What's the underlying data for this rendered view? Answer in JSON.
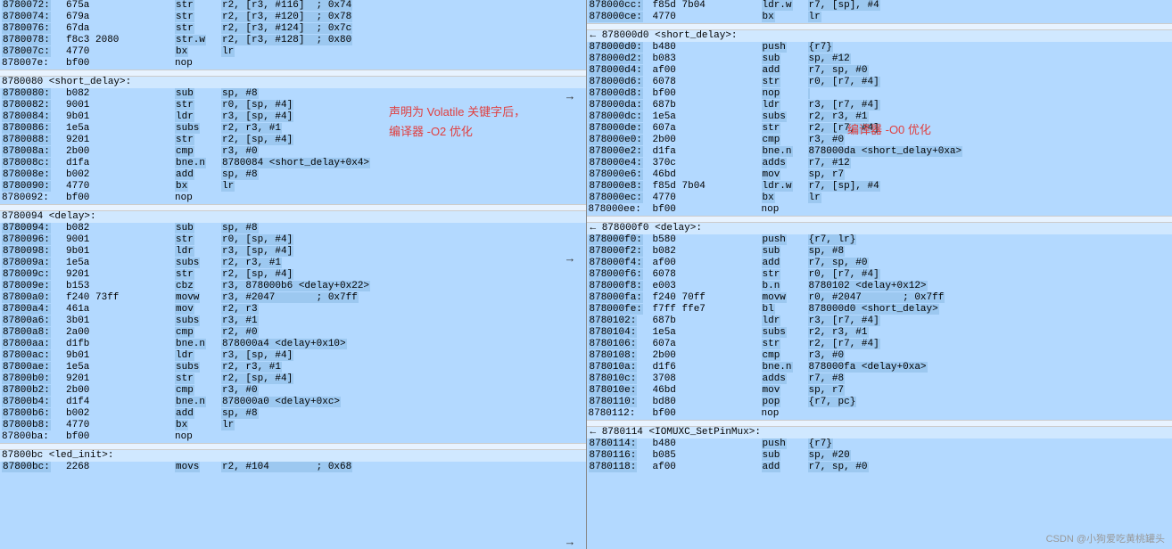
{
  "colors": {
    "background": "#b3d9ff",
    "highlight": "#9cc8f0",
    "text": "#000000",
    "annotation": "#e04040",
    "watermark": "#999999",
    "divider": "#999999"
  },
  "annotations": {
    "left_line1": "声明为 Volatile 关键字后，",
    "left_line2": "编译器 -O2 优化",
    "right": "编译器 -O0 优化"
  },
  "watermark": "CSDN @小狗爱吃黄桃罐头",
  "left_pane": {
    "lines": [
      {
        "addr": "8780072:",
        "hex": "675a",
        "mnem": "str",
        "ops": "r2, [r3, #116]  ; 0x74",
        "hl": true
      },
      {
        "addr": "8780074:",
        "hex": "679a",
        "mnem": "str",
        "ops": "r2, [r3, #120]  ; 0x78",
        "hl": true
      },
      {
        "addr": "8780076:",
        "hex": "67da",
        "mnem": "str",
        "ops": "r2, [r3, #124]  ; 0x7c",
        "hl": true
      },
      {
        "addr": "8780078:",
        "hex": "f8c3 2080",
        "mnem": "str.w",
        "ops": "r2, [r3, #128]  ; 0x80",
        "hl": true
      },
      {
        "addr": "878007c:",
        "hex": "4770",
        "mnem": "bx",
        "ops": "lr",
        "hl": true,
        "hlm": true
      },
      {
        "addr": "878007e:",
        "hex": "bf00",
        "mnem": "nop",
        "ops": "",
        "hl": false
      },
      {
        "type": "gap"
      },
      {
        "type": "hdr",
        "text": "8780080 <short_delay>:"
      },
      {
        "addr": "8780080:",
        "hex": "b082",
        "mnem": "sub",
        "ops": "sp, #8",
        "hl": true
      },
      {
        "addr": "8780082:",
        "hex": "9001",
        "mnem": "str",
        "ops": "r0, [sp, #4]",
        "hl": true
      },
      {
        "addr": "8780084:",
        "hex": "9b01",
        "mnem": "ldr",
        "ops": "r3, [sp, #4]",
        "hl": true
      },
      {
        "addr": "8780086:",
        "hex": "1e5a",
        "mnem": "subs",
        "ops": "r2, r3, #1",
        "hl": true
      },
      {
        "addr": "8780088:",
        "hex": "9201",
        "mnem": "str",
        "ops": "r2, [sp, #4]",
        "hl": true
      },
      {
        "addr": "878008a:",
        "hex": "2b00",
        "mnem": "cmp",
        "ops": "r3, #0",
        "hl": true
      },
      {
        "addr": "878008c:",
        "hex": "d1fa",
        "mnem": "bne.n",
        "ops": "8780084 <short_delay+0x4>",
        "hl": true
      },
      {
        "addr": "878008e:",
        "hex": "b002",
        "mnem": "add",
        "ops": "sp, #8",
        "hl": true
      },
      {
        "addr": "8780090:",
        "hex": "4770",
        "mnem": "bx",
        "ops": "lr",
        "hl": true
      },
      {
        "addr": "8780092:",
        "hex": "bf00",
        "mnem": "nop",
        "ops": "",
        "hl": false
      },
      {
        "type": "gap"
      },
      {
        "type": "hdr",
        "text": "8780094 <delay>:"
      },
      {
        "addr": "8780094:",
        "hex": "b082",
        "mnem": "sub",
        "ops": "sp, #8",
        "hl": true,
        "hlm": true
      },
      {
        "addr": "8780096:",
        "hex": "9001",
        "mnem": "str",
        "ops": "r0, [sp, #4]",
        "hl": true
      },
      {
        "addr": "8780098:",
        "hex": "9b01",
        "mnem": "ldr",
        "ops": "r3, [sp, #4]",
        "hl": true
      },
      {
        "addr": "878009a:",
        "hex": "1e5a",
        "mnem": "subs",
        "ops": "r2, r3, #1",
        "hl": true
      },
      {
        "addr": "878009c:",
        "hex": "9201",
        "mnem": "str",
        "ops": "r2, [sp, #4]",
        "hl": true
      },
      {
        "addr": "878009e:",
        "hex": "b153",
        "mnem": "cbz",
        "ops": "r3, 878000b6 <delay+0x22>",
        "hl": true,
        "hlm": true
      },
      {
        "addr": "87800a0:",
        "hex": "f240 73ff",
        "mnem": "movw",
        "ops": "r3, #2047       ; 0x7ff",
        "hl": true
      },
      {
        "addr": "87800a4:",
        "hex": "461a",
        "mnem": "mov",
        "ops": "r2, r3",
        "hl": true,
        "hlm": true
      },
      {
        "addr": "87800a6:",
        "hex": "3b01",
        "mnem": "subs",
        "ops": "r3, #1",
        "hl": true,
        "hlm": true
      },
      {
        "addr": "87800a8:",
        "hex": "2a00",
        "mnem": "cmp",
        "ops": "r2, #0",
        "hl": true,
        "hlm": true
      },
      {
        "addr": "87800aa:",
        "hex": "d1fb",
        "mnem": "bne.n",
        "ops": "878000a4 <delay+0x10>",
        "hl": true
      },
      {
        "addr": "87800ac:",
        "hex": "9b01",
        "mnem": "ldr",
        "ops": "r3, [sp, #4]",
        "hl": true
      },
      {
        "addr": "87800ae:",
        "hex": "1e5a",
        "mnem": "subs",
        "ops": "r2, r3, #1",
        "hl": true
      },
      {
        "addr": "87800b0:",
        "hex": "9201",
        "mnem": "str",
        "ops": "r2, [sp, #4]",
        "hl": true
      },
      {
        "addr": "87800b2:",
        "hex": "2b00",
        "mnem": "cmp",
        "ops": "r3, #0",
        "hl": true
      },
      {
        "addr": "87800b4:",
        "hex": "d1f4",
        "mnem": "bne.n",
        "ops": "878000a0 <delay+0xc>",
        "hl": true
      },
      {
        "addr": "87800b6:",
        "hex": "b002",
        "mnem": "add",
        "ops": "sp, #8",
        "hl": true
      },
      {
        "addr": "87800b8:",
        "hex": "4770",
        "mnem": "bx",
        "ops": "lr",
        "hl": true,
        "hlm": true
      },
      {
        "addr": "87800ba:",
        "hex": "bf00",
        "mnem": "nop",
        "ops": "",
        "hl": false
      },
      {
        "type": "gap"
      },
      {
        "type": "hdr",
        "text": "87800bc <led_init>:"
      },
      {
        "addr": "87800bc:",
        "hex": "2268",
        "mnem": "movs",
        "ops": "r2, #104        ; 0x68",
        "hl": true
      }
    ]
  },
  "right_pane": {
    "lines": [
      {
        "addr": "878000cc:",
        "hex": "f85d 7b04",
        "mnem": "ldr.w",
        "ops": "r7, [sp], #4",
        "hl": true
      },
      {
        "addr": "878000ce:",
        "hex": "4770",
        "mnem": "bx",
        "ops": "lr",
        "hl": true
      },
      {
        "type": "gap"
      },
      {
        "type": "hdr",
        "text": "878000d0 <short_delay>:",
        "arrow": "←"
      },
      {
        "addr": "878000d0:",
        "hex": "b480",
        "mnem": "push",
        "ops": "{r7}",
        "hl": true
      },
      {
        "addr": "878000d2:",
        "hex": "b083",
        "mnem": "sub",
        "ops": "sp, #12",
        "hl": true
      },
      {
        "addr": "878000d4:",
        "hex": "af00",
        "mnem": "add",
        "ops": "r7, sp, #0",
        "hl": true
      },
      {
        "addr": "878000d6:",
        "hex": "6078",
        "mnem": "str",
        "ops": "r0, [r7, #4]",
        "hl": true
      },
      {
        "addr": "878000d8:",
        "hex": "bf00",
        "mnem": "nop",
        "ops": "",
        "hl": true,
        "hlm": true
      },
      {
        "addr": "878000da:",
        "hex": "687b",
        "mnem": "ldr",
        "ops": "r3, [r7, #4]",
        "hl": true
      },
      {
        "addr": "878000dc:",
        "hex": "1e5a",
        "mnem": "subs",
        "ops": "r2, r3, #1",
        "hl": true
      },
      {
        "addr": "878000de:",
        "hex": "607a",
        "mnem": "str",
        "ops": "r2, [r7, #4]",
        "hl": true
      },
      {
        "addr": "878000e0:",
        "hex": "2b00",
        "mnem": "cmp",
        "ops": "r3, #0",
        "hl": true
      },
      {
        "addr": "878000e2:",
        "hex": "d1fa",
        "mnem": "bne.n",
        "ops": "878000da <short_delay+0xa>",
        "hl": true
      },
      {
        "addr": "878000e4:",
        "hex": "370c",
        "mnem": "adds",
        "ops": "r7, #12",
        "hl": true
      },
      {
        "addr": "878000e6:",
        "hex": "46bd",
        "mnem": "mov",
        "ops": "sp, r7",
        "hl": true
      },
      {
        "addr": "878000e8:",
        "hex": "f85d 7b04",
        "mnem": "ldr.w",
        "ops": "r7, [sp], #4",
        "hl": true
      },
      {
        "addr": "878000ec:",
        "hex": "4770",
        "mnem": "bx",
        "ops": "lr",
        "hl": true
      },
      {
        "addr": "878000ee:",
        "hex": "bf00",
        "mnem": "nop",
        "ops": "",
        "hl": false
      },
      {
        "type": "gap"
      },
      {
        "type": "hdr",
        "text": "878000f0 <delay>:",
        "arrow": "←"
      },
      {
        "addr": "878000f0:",
        "hex": "b580",
        "mnem": "push",
        "ops": "{r7, lr}",
        "hl": true,
        "hlm": true
      },
      {
        "addr": "878000f2:",
        "hex": "b082",
        "mnem": "sub",
        "ops": "sp, #8",
        "hl": true
      },
      {
        "addr": "878000f4:",
        "hex": "af00",
        "mnem": "add",
        "ops": "r7, sp, #0",
        "hl": true
      },
      {
        "addr": "878000f6:",
        "hex": "6078",
        "mnem": "str",
        "ops": "r0, [r7, #4]",
        "hl": true
      },
      {
        "addr": "878000f8:",
        "hex": "e003",
        "mnem": "b.n",
        "ops": "8780102 <delay+0x12>",
        "hl": true,
        "hlm": true
      },
      {
        "addr": "878000fa:",
        "hex": "f240 70ff",
        "mnem": "movw",
        "ops": "r0, #2047       ; 0x7ff",
        "hl": true
      },
      {
        "addr": "878000fe:",
        "hex": "f7ff ffe7",
        "mnem": "bl",
        "ops": "878000d0 <short_delay>",
        "hl": true,
        "hlm": true
      },
      {
        "addr": "8780102:",
        "hex": "687b",
        "mnem": "ldr",
        "ops": "r3, [r7, #4]",
        "hl": true,
        "hlm": true
      },
      {
        "addr": "8780104:",
        "hex": "1e5a",
        "mnem": "subs",
        "ops": "r2, r3, #1",
        "hl": true,
        "hlm": true
      },
      {
        "addr": "8780106:",
        "hex": "607a",
        "mnem": "str",
        "ops": "r2, [r7, #4]",
        "hl": true
      },
      {
        "addr": "8780108:",
        "hex": "2b00",
        "mnem": "cmp",
        "ops": "r3, #0",
        "hl": true
      },
      {
        "addr": "878010a:",
        "hex": "d1f6",
        "mnem": "bne.n",
        "ops": "878000fa <delay+0xa>",
        "hl": true
      },
      {
        "addr": "878010c:",
        "hex": "3708",
        "mnem": "adds",
        "ops": "r7, #8",
        "hl": true
      },
      {
        "addr": "878010e:",
        "hex": "46bd",
        "mnem": "mov",
        "ops": "sp, r7",
        "hl": true
      },
      {
        "addr": "8780110:",
        "hex": "bd80",
        "mnem": "pop",
        "ops": "{r7, pc}",
        "hl": true,
        "hlm": true
      },
      {
        "addr": "8780112:",
        "hex": "bf00",
        "mnem": "nop",
        "ops": "",
        "hl": false
      },
      {
        "type": "gap"
      },
      {
        "type": "hdr",
        "text": "8780114 <IOMUXC_SetPinMux>:",
        "arrow": "←"
      },
      {
        "addr": "8780114:",
        "hex": "b480",
        "mnem": "push",
        "ops": "{r7}",
        "hl": true
      },
      {
        "addr": "8780116:",
        "hex": "b085",
        "mnem": "sub",
        "ops": "sp, #20",
        "hl": true
      },
      {
        "addr": "8780118:",
        "hex": "af00",
        "mnem": "add",
        "ops": "r7, sp, #0",
        "hl": true
      }
    ]
  }
}
